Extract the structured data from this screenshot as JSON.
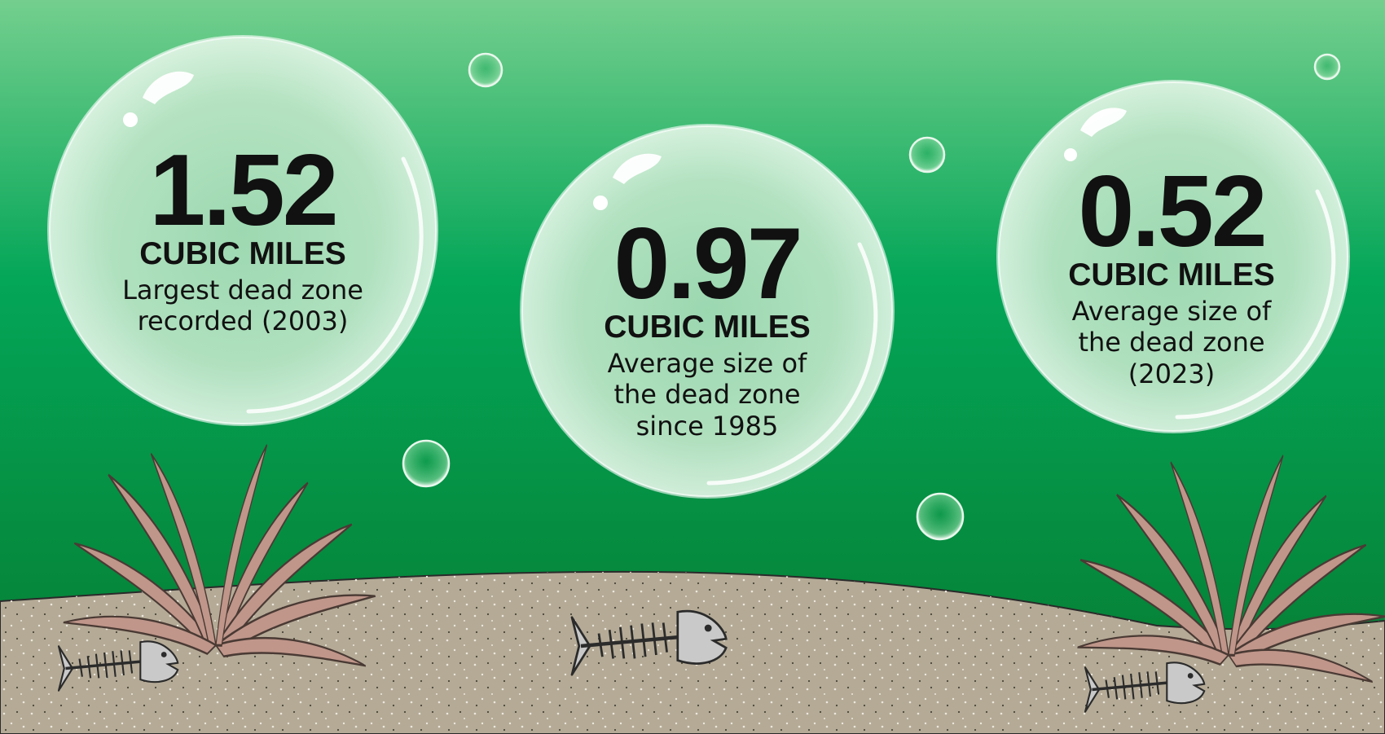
{
  "stats": [
    {
      "value": "1.52",
      "unit": "CUBIC MILES",
      "description": "Largest dead zone recorded (2003)"
    },
    {
      "value": "0.97",
      "unit": "CUBIC MILES",
      "description": "Average size of the dead zone since 1985"
    },
    {
      "value": "0.52",
      "unit": "CUBIC MILES",
      "description": "Average size of the dead zone (2023)"
    }
  ],
  "colors": {
    "water_top": "#74cf8e",
    "water_mid": "#04a658",
    "water_bottom": "#067a2f",
    "sand": "#b4aa96",
    "seagrass": "#c0968a",
    "fish_bone": "#c9c9c9"
  },
  "icons": [
    "bubble-icon",
    "seagrass-icon",
    "fish-skeleton-icon"
  ]
}
